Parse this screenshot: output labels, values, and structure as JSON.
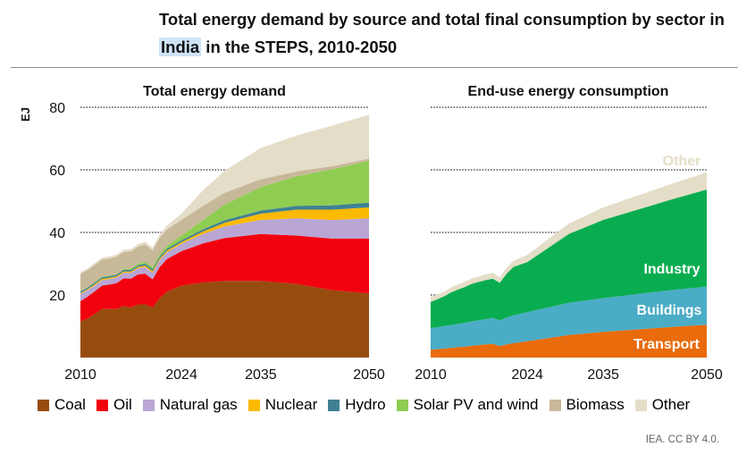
{
  "title_parts": {
    "before": "Total energy demand by source and total final consumption by sector in ",
    "highlight": "India",
    "after": " in the STEPS, 2010-2050"
  },
  "source": "IEA. CC BY 4.0.",
  "colors": {
    "Coal": "#974c0f",
    "Oil": "#f2010f",
    "Natural gas": "#b9a6d4",
    "Nuclear": "#fbb900",
    "Hydro": "#3f8193",
    "Solar PV and wind": "#8fcd52",
    "Biomass": "#c8b89a",
    "Other": "#e4ddc8",
    "Transport": "#e96b0b",
    "Buildings": "#4bacc6",
    "Industry": "#09ad50",
    "OtherEnd": "#e4ddc8"
  },
  "legend": [
    "Coal",
    "Oil",
    "Natural gas",
    "Nuclear",
    "Hydro",
    "Solar PV and wind",
    "Biomass",
    "Other"
  ],
  "chart_data": [
    {
      "type": "area",
      "stacked": true,
      "title": "Total energy demand",
      "ylabel": "EJ",
      "ylim": [
        0,
        80
      ],
      "yticks": [
        20,
        40,
        60,
        80
      ],
      "xticks": [
        "2010",
        "2024",
        "2035",
        "2050"
      ],
      "x": [
        2010,
        2011,
        2012,
        2013,
        2014,
        2015,
        2016,
        2017,
        2018,
        2019,
        2020,
        2021,
        2022,
        2024,
        2027,
        2030,
        2035,
        2040,
        2045,
        2050
      ],
      "series": [
        {
          "name": "Coal",
          "values": [
            11.5,
            12.5,
            14,
            15.5,
            15.5,
            15.5,
            16.5,
            16,
            17,
            17,
            16,
            19,
            21,
            23,
            24,
            24.5,
            24.5,
            23.5,
            21.5,
            20.5
          ]
        },
        {
          "name": "Oil",
          "values": [
            6.5,
            7,
            7.2,
            7.5,
            7.8,
            8.3,
            8.8,
            9.2,
            9.6,
            9.8,
            9,
            10,
            10.5,
            11,
            12.5,
            13.7,
            15,
            15.5,
            16.5,
            17.5
          ]
        },
        {
          "name": "Natural gas",
          "values": [
            2.3,
            2.1,
            1.9,
            1.8,
            1.8,
            1.8,
            1.8,
            1.9,
            2,
            2.1,
            2.1,
            2.2,
            2.2,
            2.4,
            3,
            3.7,
            4.5,
            5.5,
            6,
            6.5
          ]
        },
        {
          "name": "Nuclear",
          "values": [
            0.3,
            0.3,
            0.4,
            0.4,
            0.4,
            0.4,
            0.4,
            0.4,
            0.4,
            0.5,
            0.5,
            0.5,
            0.5,
            0.5,
            0.8,
            1.2,
            2,
            2.8,
            3.3,
            3.5
          ]
        },
        {
          "name": "Hydro",
          "values": [
            0.5,
            0.5,
            0.5,
            0.5,
            0.5,
            0.5,
            0.5,
            0.5,
            0.5,
            0.6,
            0.6,
            0.6,
            0.6,
            0.6,
            0.7,
            0.8,
            1,
            1.2,
            1.4,
            1.5
          ]
        },
        {
          "name": "Solar PV and wind",
          "values": [
            0.1,
            0.1,
            0.15,
            0.15,
            0.2,
            0.2,
            0.3,
            0.4,
            0.5,
            0.6,
            0.7,
            0.8,
            1,
            1.5,
            3,
            5,
            7.5,
            9.5,
            11.5,
            13.5
          ]
        },
        {
          "name": "Biomass",
          "values": [
            5.5,
            5.5,
            5.5,
            5.5,
            5.5,
            5.5,
            5.5,
            5.5,
            5.5,
            5.5,
            5.3,
            5.3,
            5.2,
            5,
            4.5,
            3.8,
            2.5,
            1.5,
            1,
            0.6
          ]
        },
        {
          "name": "Other",
          "values": [
            0.5,
            0.5,
            0.6,
            0.6,
            0.6,
            0.7,
            0.7,
            0.8,
            0.8,
            0.9,
            0.9,
            1,
            1.2,
            2,
            5,
            7,
            10,
            11.5,
            13,
            14
          ]
        }
      ]
    },
    {
      "type": "area",
      "stacked": true,
      "title": "End-use energy consumption",
      "ylim": [
        0,
        80
      ],
      "xticks": [
        "2010",
        "2024",
        "2035",
        "2050"
      ],
      "x": [
        2010,
        2011,
        2012,
        2013,
        2014,
        2015,
        2016,
        2017,
        2018,
        2019,
        2020,
        2021,
        2022,
        2024,
        2027,
        2030,
        2035,
        2040,
        2045,
        2050
      ],
      "series": [
        {
          "name": "Transport",
          "values": [
            2.5,
            2.7,
            2.9,
            3.1,
            3.3,
            3.5,
            3.8,
            4,
            4.2,
            4.4,
            3.7,
            4.2,
            4.6,
            5.2,
            6.2,
            7.2,
            8.2,
            9,
            9.8,
            10.5
          ]
        },
        {
          "name": "Buildings",
          "values": [
            7,
            7,
            7.2,
            7.3,
            7.5,
            7.6,
            7.8,
            7.9,
            8.1,
            8.3,
            8.2,
            8.6,
            8.9,
            9.3,
            9.8,
            10.3,
            10.8,
            11.3,
            11.8,
            12.2
          ]
        },
        {
          "name": "Industry",
          "values": [
            8.3,
            9,
            9.5,
            10.5,
            11,
            11.5,
            12,
            12.3,
            12.5,
            12.5,
            12,
            14,
            15.5,
            16,
            19,
            22,
            25,
            27,
            29,
            31
          ]
        },
        {
          "name": "Other",
          "values": [
            1.5,
            1.5,
            1.5,
            1.6,
            1.6,
            1.7,
            1.7,
            1.8,
            1.8,
            1.9,
            1.8,
            1.9,
            2,
            2.3,
            2.8,
            3.3,
            4,
            4.5,
            5,
            5.5
          ]
        }
      ],
      "labels": [
        "Other",
        "Industry",
        "Buildings",
        "Transport"
      ]
    }
  ]
}
